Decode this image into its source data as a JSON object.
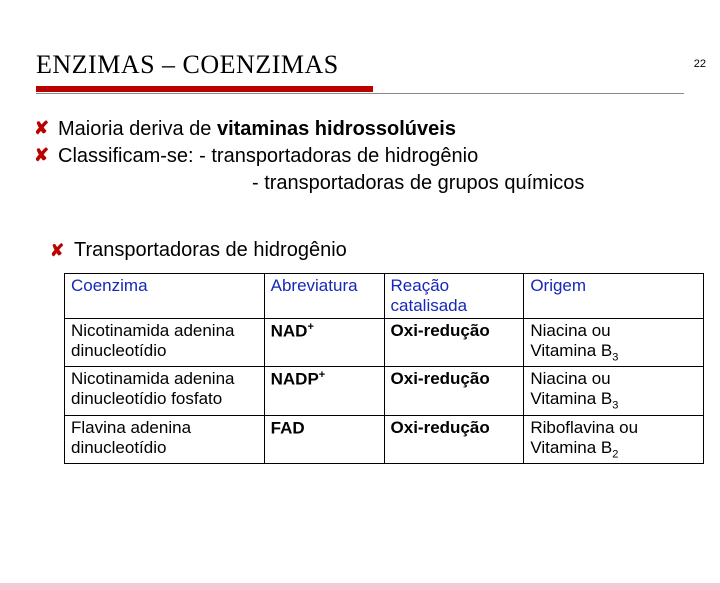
{
  "page_number": "22",
  "title": "ENZIMAS – COENZIMAS",
  "bullets": {
    "b1_prefix": "Maioria deriva de ",
    "b1_bold": "vitaminas hidrossolúveis",
    "b2": "Classificam-se: - transportadoras de hidrogênio",
    "b2_cont": "- transportadoras de grupos químicos",
    "sub": "Transportadoras de hidrogênio"
  },
  "table": {
    "headers": {
      "h1": "Coenzima",
      "h2": "Abreviatura",
      "h3": "Reação catalisada",
      "h4": "Origem"
    },
    "rows": [
      {
        "coenz_l1": "Nicotinamida adenina",
        "coenz_l2": "dinucleotídio",
        "abbr_base": "NAD",
        "abbr_sup": "+",
        "react": "Oxi-redução",
        "orig_l1": "Niacina ou",
        "orig_l2_pre": "Vitamina B",
        "orig_l2_sub": "3"
      },
      {
        "coenz_l1": "Nicotinamida adenina",
        "coenz_l2": "dinucleotídio fosfato",
        "abbr_base": "NADP",
        "abbr_sup": "+",
        "react": "Oxi-redução",
        "orig_l1": "Niacina ou",
        "orig_l2_pre": "Vitamina B",
        "orig_l2_sub": "3"
      },
      {
        "coenz_l1": "Flavina adenina",
        "coenz_l2": "dinucleotídio",
        "abbr_base": "FAD",
        "abbr_sup": "",
        "react": "Oxi-redução",
        "orig_l1": "Riboflavina ou",
        "orig_l2_pre": "Vitamina B",
        "orig_l2_sub": "2"
      }
    ]
  },
  "style": {
    "accent_color": "#bb0000",
    "header_text_color": "#1528b8",
    "background": "#ffffff",
    "bottom_strip": "#f7c9d6",
    "title_fontsize": 26,
    "body_fontsize": 20,
    "table_fontsize": 17
  }
}
